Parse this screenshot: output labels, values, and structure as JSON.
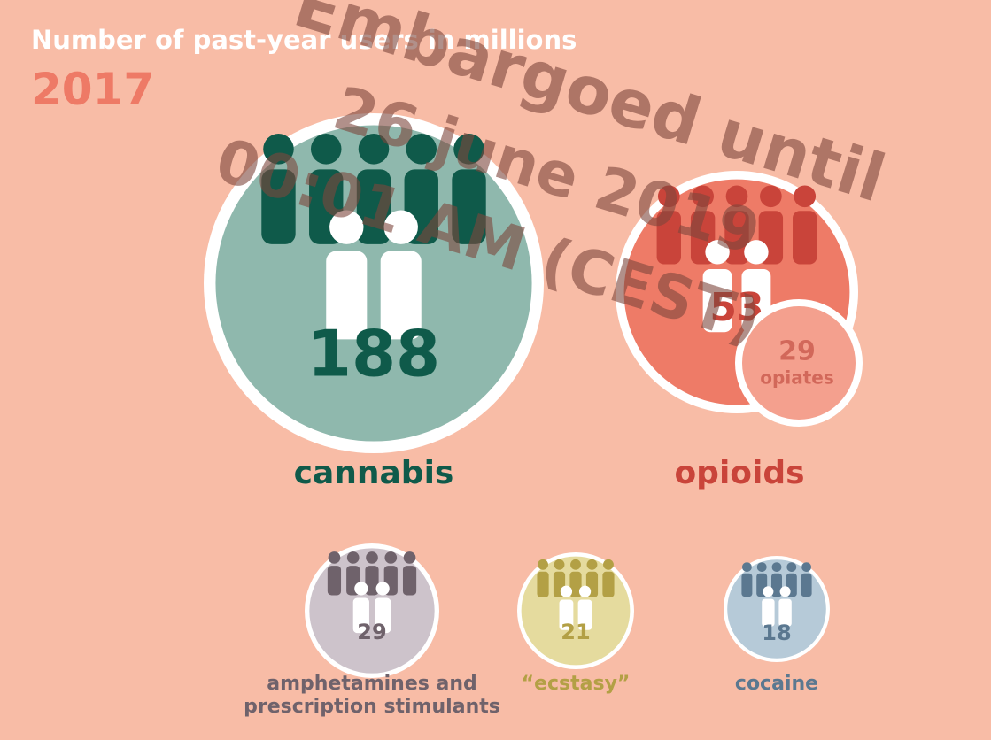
{
  "chart_data": {
    "type": "bubble",
    "title": "Number of past-year users in millions",
    "subtitle": "2017",
    "categories": [
      "cannabis",
      "opioids",
      "amphetamines and prescription stimulants",
      "“ecstasy”",
      "cocaine"
    ],
    "values": [
      188,
      53,
      29,
      21,
      18
    ],
    "colors": [
      "#8fb8ad",
      "#ee7b67",
      "#cdc3cb",
      "#e5db9e",
      "#b6cad8"
    ],
    "label_colors": [
      "#0f5a4a",
      "#c9443a",
      "#6f626b",
      "#b3a045",
      "#5b7890"
    ],
    "inset": {
      "name": "opiates",
      "value": 29,
      "color": "#f4a08e",
      "label_color": "#d2685a"
    },
    "watermark": [
      "Embargoed until",
      "26 june 2019",
      "00:01 AM (CEST)"
    ]
  }
}
